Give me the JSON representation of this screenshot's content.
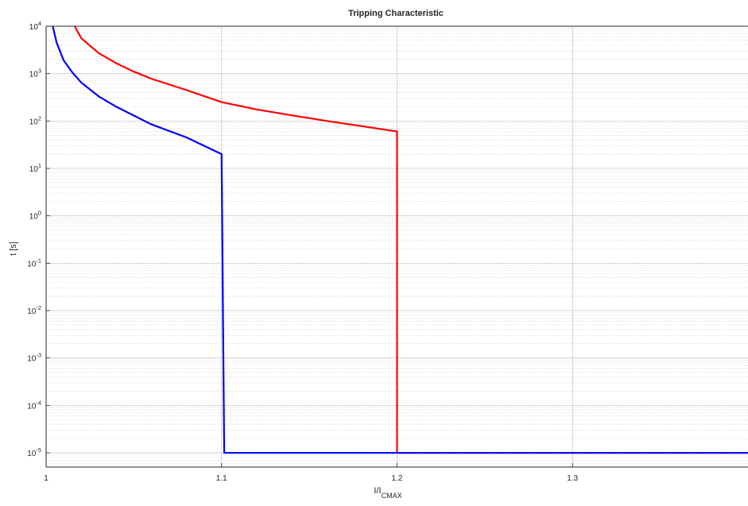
{
  "chart_data": {
    "type": "line",
    "title": "Tripping Characteristic",
    "xlabel": {
      "main": "I/I",
      "sub": "CMAX"
    },
    "ylabel": "t [s]",
    "xlim": [
      1.0,
      1.4
    ],
    "ylim": [
      5e-06,
      10000
    ],
    "yscale": "log",
    "grid": true,
    "minor_grid": true,
    "legend": "none",
    "x_ticks": [
      {
        "value": 1.0,
        "label": "1"
      },
      {
        "value": 1.1,
        "label": "1.1"
      },
      {
        "value": 1.2,
        "label": "1.2"
      },
      {
        "value": 1.3,
        "label": "1.3"
      }
    ],
    "y_ticks": [
      {
        "exp": 4,
        "base": "10",
        "sup": "4"
      },
      {
        "exp": 3,
        "base": "10",
        "sup": "3"
      },
      {
        "exp": 2,
        "base": "10",
        "sup": "2"
      },
      {
        "exp": 1,
        "base": "10",
        "sup": "1"
      },
      {
        "exp": 0,
        "base": "10",
        "sup": "0"
      },
      {
        "exp": -1,
        "base": "10",
        "sup": "-1"
      },
      {
        "exp": -2,
        "base": "10",
        "sup": "-2"
      },
      {
        "exp": -3,
        "base": "10",
        "sup": "-3"
      },
      {
        "exp": -4,
        "base": "10",
        "sup": "-4"
      },
      {
        "exp": -5,
        "base": "10",
        "sup": "-5"
      }
    ],
    "series": [
      {
        "color": "#ff0000",
        "points": [
          [
            1.0163,
            10000
          ],
          [
            1.02,
            5600
          ],
          [
            1.03,
            2700
          ],
          [
            1.04,
            1650
          ],
          [
            1.05,
            1100
          ],
          [
            1.06,
            780
          ],
          [
            1.08,
            450
          ],
          [
            1.1,
            250
          ],
          [
            1.12,
            175
          ],
          [
            1.14,
            132
          ],
          [
            1.16,
            100
          ],
          [
            1.18,
            78
          ],
          [
            1.2,
            60
          ],
          [
            1.2,
            1e-05
          ],
          [
            1.4,
            1e-05
          ]
        ]
      },
      {
        "color": "#0000ff",
        "points": [
          [
            1.0038,
            10000
          ],
          [
            1.006,
            4500
          ],
          [
            1.01,
            1900
          ],
          [
            1.015,
            1050
          ],
          [
            1.02,
            650
          ],
          [
            1.03,
            330
          ],
          [
            1.04,
            200
          ],
          [
            1.05,
            130
          ],
          [
            1.06,
            85
          ],
          [
            1.08,
            45
          ],
          [
            1.1,
            20
          ],
          [
            1.1015,
            1e-05
          ],
          [
            1.4,
            1e-05
          ]
        ]
      }
    ]
  }
}
